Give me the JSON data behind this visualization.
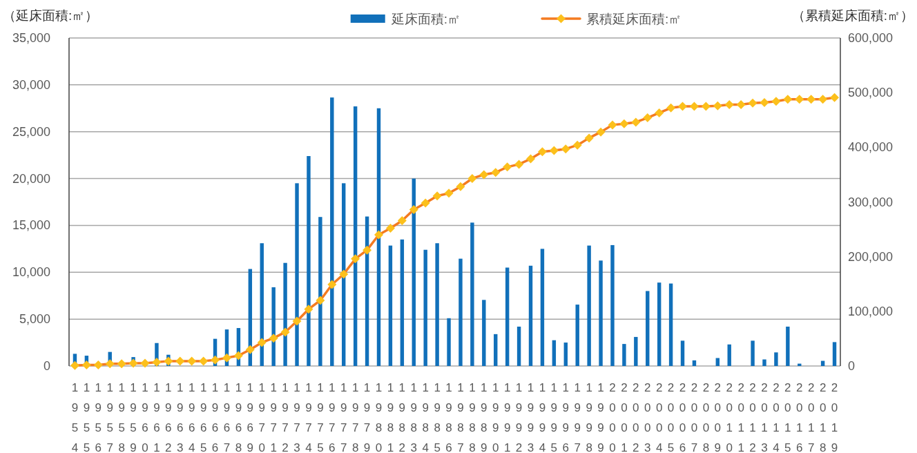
{
  "chart_data": {
    "type": "bar",
    "categories": [
      "1954",
      "1955",
      "1956",
      "1957",
      "1958",
      "1959",
      "1960",
      "1961",
      "1962",
      "1963",
      "1964",
      "1965",
      "1966",
      "1967",
      "1968",
      "1969",
      "1970",
      "1971",
      "1972",
      "1973",
      "1974",
      "1975",
      "1976",
      "1977",
      "1978",
      "1979",
      "1980",
      "1981",
      "1982",
      "1983",
      "1984",
      "1985",
      "1986",
      "1987",
      "1988",
      "1989",
      "1990",
      "1991",
      "1992",
      "1993",
      "1994",
      "1995",
      "1996",
      "1997",
      "1998",
      "1999",
      "2000",
      "2001",
      "2002",
      "2003",
      "2004",
      "2005",
      "2006",
      "2007",
      "2008",
      "2009",
      "2010",
      "2011",
      "2012",
      "2013",
      "2014",
      "2015",
      "2016",
      "2017",
      "2018",
      "2019"
    ],
    "ylabel": "（延床面積:㎡）",
    "y2label": "（累積延床面積:㎡）",
    "series": [
      {
        "name": "延床面積:㎡",
        "color": "#1170ba",
        "values": [
          1300,
          1100,
          0,
          1500,
          0,
          950,
          0,
          2450,
          1200,
          0,
          0,
          0,
          2900,
          3900,
          4050,
          10350,
          13100,
          8400,
          11000,
          19500,
          22400,
          15900,
          28650,
          19500,
          27700,
          15950,
          27500,
          12850,
          13500,
          20000,
          12400,
          13100,
          5100,
          11450,
          15300,
          7050,
          3400,
          10500,
          4200,
          10700,
          12500,
          2750,
          2500,
          6550,
          12850,
          11250,
          12900,
          2350,
          3100,
          8000,
          8900,
          8800,
          2700,
          600,
          0,
          850,
          2300,
          0,
          2700,
          700,
          1450,
          4200,
          250,
          0,
          550,
          2550
        ]
      },
      {
        "name": "累積延床面積:㎡",
        "type": "line",
        "axis": "y2",
        "color": "#f47b20",
        "colors": [
          "#fcc01c",
          "#fcc01c",
          "#fcc01c",
          "#fcc01c",
          "#fcc01c",
          "#fcc01c",
          "#fcc01c",
          "#fcc01c",
          "#fcc01c",
          "#fcc01c",
          "#fcc01c",
          "#fcc01c",
          "#fcc01c",
          "#fcc01c",
          "#fcc01c",
          "#fcc01c",
          "#fcc01c",
          "#fcc01c",
          "#fcc01c",
          "#fcc01c",
          "#fcc01c",
          "#fcc01c",
          "#fcc01c",
          "#fcc01c",
          "#fcc01c",
          "#fcc01c",
          "#fcc01c",
          "#fcc01c",
          "#fcc01c",
          "#fcc01c",
          "#fcc01c",
          "#fcc01c",
          "#fcc01c",
          "#fcc01c",
          "#fcc01c",
          "#fcc01c",
          "#fcc01c",
          "#fcc01c",
          "#fcc01c",
          "#fcc01c",
          "#fcc01c",
          "#fcc01c",
          "#fcc01c",
          "#fcc01c",
          "#fcc01c",
          "#fcc01c",
          "#fcc01c",
          "#fcc01c",
          "#fcc01c",
          "#fcc01c",
          "#fcc01c",
          "#fcc01c",
          "#fcc01c",
          "#fcc01c",
          "#fcc01c",
          "#fcc01c",
          "#fcc01c",
          "#fcc01c",
          "#fcc01c",
          "#fcc01c",
          "#fcc01c",
          "#fcc01c",
          "#fcc01c",
          "#fcc01c",
          "#fcc01c",
          "#fcc01c"
        ],
        "values": [
          1000,
          2000,
          2000,
          4000,
          4000,
          5000,
          5000,
          7000,
          9000,
          9000,
          9000,
          9000,
          11000,
          15000,
          19000,
          30000,
          43000,
          51000,
          62000,
          82000,
          104000,
          120000,
          149000,
          168000,
          196000,
          212000,
          240000,
          252000,
          266000,
          286000,
          298000,
          311000,
          316000,
          328000,
          343000,
          350000,
          354000,
          364000,
          369000,
          379000,
          392000,
          394000,
          397000,
          404000,
          417000,
          428000,
          441000,
          443000,
          446000,
          454000,
          463000,
          472000,
          475000,
          475000,
          475000,
          476000,
          478000,
          478000,
          481000,
          482000,
          484000,
          488000,
          488000,
          488000,
          488000,
          491000
        ]
      }
    ],
    "ylim": [
      0,
      35000
    ],
    "yticks": [
      0,
      {
        "value": 5000,
        "label": "5,000"
      },
      {
        "value": 10000,
        "label": "10,000"
      },
      {
        "value": 15000,
        "label": "15,000"
      },
      {
        "value": 20000,
        "label": "20,000"
      },
      {
        "value": 25000,
        "label": "25,000"
      },
      {
        "value": 30000,
        "label": "30,000"
      },
      {
        "value": 35000,
        "label": "35,000"
      }
    ],
    "y2lim": [
      0,
      600000
    ],
    "y2ticks": [
      0,
      {
        "value": 100000,
        "label": "100,000"
      },
      {
        "value": 200000,
        "label": "200,000"
      },
      {
        "value": 300000,
        "label": "300,000"
      },
      {
        "value": 400000,
        "label": "400,000"
      },
      {
        "value": 500000,
        "label": "500,000"
      },
      {
        "value": 600000,
        "label": "600,000"
      }
    ],
    "grid": "y",
    "legend": "top",
    "marker": "diamond",
    "line_style": "solid"
  }
}
